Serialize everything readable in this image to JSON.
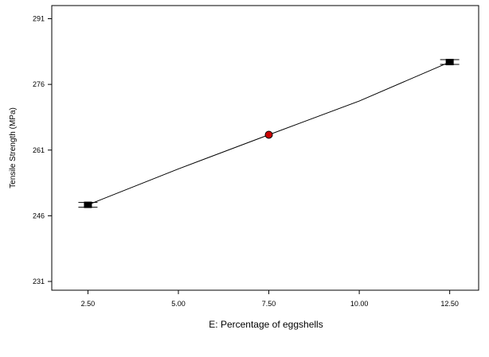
{
  "chart_data": {
    "type": "line",
    "title": "",
    "xlabel": "E: Percentage of eggshells",
    "ylabel": "Tensile Strength (MPa)",
    "xlim": [
      1.5,
      13.3
    ],
    "ylim": [
      229,
      294
    ],
    "x_ticks": [
      2.5,
      5.0,
      7.5,
      10.0,
      12.5
    ],
    "x_tick_labels": [
      "2.50",
      "5.00",
      "7.50",
      "10.00",
      "12.50"
    ],
    "y_ticks": [
      231,
      246,
      261,
      276,
      291
    ],
    "y_tick_labels": [
      "231",
      "246",
      "261",
      "276",
      "291"
    ],
    "grid": false,
    "series": [
      {
        "x": [
          2.5,
          5.0,
          7.5,
          10.0,
          12.5
        ],
        "y": [
          248.5,
          256.7,
          264.5,
          272.2,
          281.1
        ]
      }
    ],
    "design_points": [
      {
        "x": 2.5,
        "y": 248.5,
        "marker": "square"
      },
      {
        "x": 7.5,
        "y": 264.5,
        "marker": "circle"
      },
      {
        "x": 12.5,
        "y": 281.1,
        "marker": "square"
      }
    ],
    "colors": {
      "line": "#000000",
      "square_marker": "#000000",
      "circle_marker": "#cc0000"
    }
  }
}
